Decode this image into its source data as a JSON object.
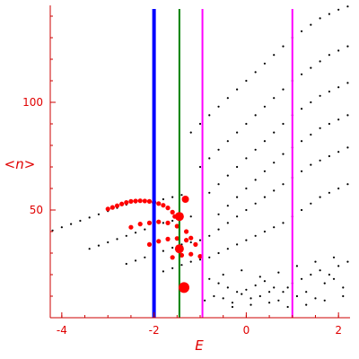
{
  "chart_data": {
    "type": "scatter",
    "xlabel": "E",
    "ylabel": "<n>",
    "xlim": [
      -4.25,
      2.25
    ],
    "ylim": [
      0,
      145
    ],
    "x_ticks": [
      "-4",
      "-2",
      "0",
      "2"
    ],
    "x_tick_values": [
      -4,
      -2,
      0,
      2
    ],
    "y_ticks": [
      "50",
      "100"
    ],
    "y_tick_values": [
      50,
      100
    ],
    "grid": false,
    "vertical_lines": [
      {
        "x": -2.0,
        "color": "#0000ff"
      },
      {
        "x": -1.45,
        "color": "#008000"
      },
      {
        "x": -0.95,
        "color": "#ff00ff"
      },
      {
        "x": 1.0,
        "color": "#ff00ff"
      }
    ],
    "black_series": [
      {
        "x": [
          -4.2,
          -4.0,
          -3.8,
          -3.6,
          -3.4,
          -3.2,
          -3.0,
          -2.8,
          -2.6,
          -2.4,
          -2.2,
          -2.0,
          -1.8,
          -1.6,
          -1.4,
          -1.2,
          -1.0,
          -0.8,
          -0.6,
          -0.4,
          -0.2,
          0.0,
          0.2,
          0.4,
          0.6,
          0.8,
          1.0,
          1.2,
          1.4,
          1.6,
          1.8,
          2.0,
          2.2
        ],
        "y": [
          40.5,
          42.0,
          43.5,
          45.0,
          46.5,
          48.0,
          49.5,
          51.0,
          52.5,
          53.5,
          54.0,
          54.5,
          55.0,
          56.0,
          57.0,
          86,
          90,
          94,
          98,
          102,
          106,
          110,
          114,
          118,
          122,
          126,
          130,
          133,
          136,
          139,
          141,
          143,
          144.5
        ]
      },
      {
        "x": [
          -3.4,
          -3.2,
          -3.0,
          -2.8,
          -2.6,
          -2.4,
          -2.2,
          -2.0,
          -1.8,
          -1.6,
          -1.4,
          -1.2,
          -1.0,
          -0.8,
          -0.6,
          -0.4,
          -0.2,
          0.0,
          0.2,
          0.4,
          0.6,
          0.8,
          1.0,
          1.2,
          1.4,
          1.6,
          1.8,
          2.0,
          2.2
        ],
        "y": [
          32,
          33.5,
          35,
          36.5,
          38,
          39.5,
          41,
          42.5,
          44,
          45,
          46,
          47,
          70,
          74,
          78,
          82,
          86,
          90,
          94,
          98,
          102,
          106,
          110,
          113,
          116,
          119,
          122,
          124,
          126
        ]
      },
      {
        "x": [
          -2.6,
          -2.4,
          -2.2,
          -2.0,
          -1.8,
          -1.6,
          -1.4,
          -1.2,
          -1.0,
          -0.8,
          -0.6,
          -0.4,
          -0.2,
          0.0,
          0.2,
          0.4,
          0.6,
          0.8,
          1.0,
          1.2,
          1.4,
          1.6,
          1.8,
          2.0,
          2.2
        ],
        "y": [
          25,
          26.5,
          28,
          29.5,
          31,
          32.5,
          34,
          35,
          36,
          58,
          62,
          66,
          70,
          74,
          78,
          82,
          86,
          90,
          94,
          97,
          100,
          103,
          105,
          107,
          109
        ]
      },
      {
        "x": [
          -2.0,
          -1.8,
          -1.6,
          -1.4,
          -1.2,
          -1.0,
          -0.8,
          -0.6,
          -0.4,
          -0.2,
          0.0,
          0.2,
          0.4,
          0.6,
          0.8,
          1.0,
          1.2,
          1.4,
          1.6,
          1.8,
          2.0,
          2.2
        ],
        "y": [
          20,
          21.5,
          23,
          24.5,
          26,
          27,
          28,
          48,
          52,
          56,
          60,
          64,
          68,
          72,
          76,
          79,
          82,
          85,
          88,
          90,
          92,
          94
        ]
      },
      {
        "x": [
          -0.8,
          -0.6,
          -0.4,
          -0.2,
          0.0,
          0.2,
          0.4,
          0.6,
          0.8,
          1.0,
          1.2,
          1.4,
          1.6,
          1.8,
          2.0,
          2.2
        ],
        "y": [
          38,
          41,
          44,
          47,
          50,
          53,
          56,
          59,
          62,
          65,
          68,
          71,
          73,
          75,
          77,
          79
        ]
      },
      {
        "x": [
          -0.6,
          -0.4,
          -0.2,
          0.0,
          0.2,
          0.4,
          0.6,
          0.8,
          1.0,
          1.2,
          1.4,
          1.6,
          1.8,
          2.0,
          2.2
        ],
        "y": [
          30,
          32,
          34,
          36,
          38,
          40,
          42,
          44,
          47,
          50,
          53,
          56,
          58,
          60,
          62
        ]
      },
      {
        "x": [
          -0.8,
          -0.6,
          -0.4,
          -0.2,
          0.0,
          0.2,
          0.4,
          0.6,
          0.8,
          1.0,
          1.2,
          1.4,
          1.6,
          1.8,
          2.0,
          2.2,
          -0.9,
          -0.7,
          -0.5,
          -0.3,
          -0.1,
          0.1,
          0.3,
          0.5,
          0.7,
          0.9,
          1.1,
          1.3,
          1.5,
          1.7,
          1.9,
          2.1,
          -0.5,
          -0.1,
          0.3,
          0.7,
          1.1,
          1.5,
          1.9,
          -0.3,
          0.1,
          0.5,
          0.9,
          1.3,
          1.7,
          2.1
        ],
        "y": [
          18,
          16,
          14,
          12,
          13,
          15,
          17,
          14,
          12,
          16,
          18,
          20,
          22,
          20,
          24,
          26,
          8,
          10,
          9,
          7,
          11,
          9,
          10,
          12,
          8,
          14,
          10,
          12,
          9,
          16,
          18,
          14,
          20,
          22,
          19,
          21,
          24,
          26,
          28,
          5,
          6,
          7,
          5,
          6,
          8,
          10
        ]
      }
    ],
    "red_series": [
      {
        "x": [
          -3.0,
          -2.9,
          -2.8,
          -2.7,
          -2.6,
          -2.5,
          -2.4,
          -2.3,
          -2.2,
          -2.1,
          -2.0,
          -1.9,
          -1.8,
          -1.7,
          -1.6,
          -1.55
        ],
        "y": [
          50.5,
          51.2,
          52.0,
          52.8,
          53.5,
          54.0,
          54.2,
          54.3,
          54.2,
          54.0,
          53.6,
          53.0,
          52.2,
          51.0,
          49.0,
          47.0
        ]
      },
      {
        "x": [
          -2.5,
          -2.3,
          -2.1,
          -1.9,
          -1.7,
          -1.5,
          -1.3,
          -1.2
        ],
        "y": [
          42.0,
          43.5,
          44.0,
          44.5,
          44.0,
          42.5,
          40.0,
          37.0
        ]
      },
      {
        "x": [
          -2.1,
          -1.9,
          -1.7,
          -1.5,
          -1.3,
          -1.1
        ],
        "y": [
          34.0,
          35.5,
          36.5,
          36.8,
          36.0,
          34.0
        ]
      },
      {
        "x": [
          -1.6,
          -1.4,
          -1.2,
          -1.0
        ],
        "y": [
          28.0,
          29.0,
          29.5,
          28.5
        ]
      }
    ],
    "red_large_points": [
      {
        "x": -1.32,
        "y": 55.0,
        "size": 4
      },
      {
        "x": -1.45,
        "y": 47.0,
        "size": 5
      },
      {
        "x": -1.45,
        "y": 32.0,
        "size": 5
      },
      {
        "x": -1.35,
        "y": 14.0,
        "size": 6
      }
    ]
  }
}
